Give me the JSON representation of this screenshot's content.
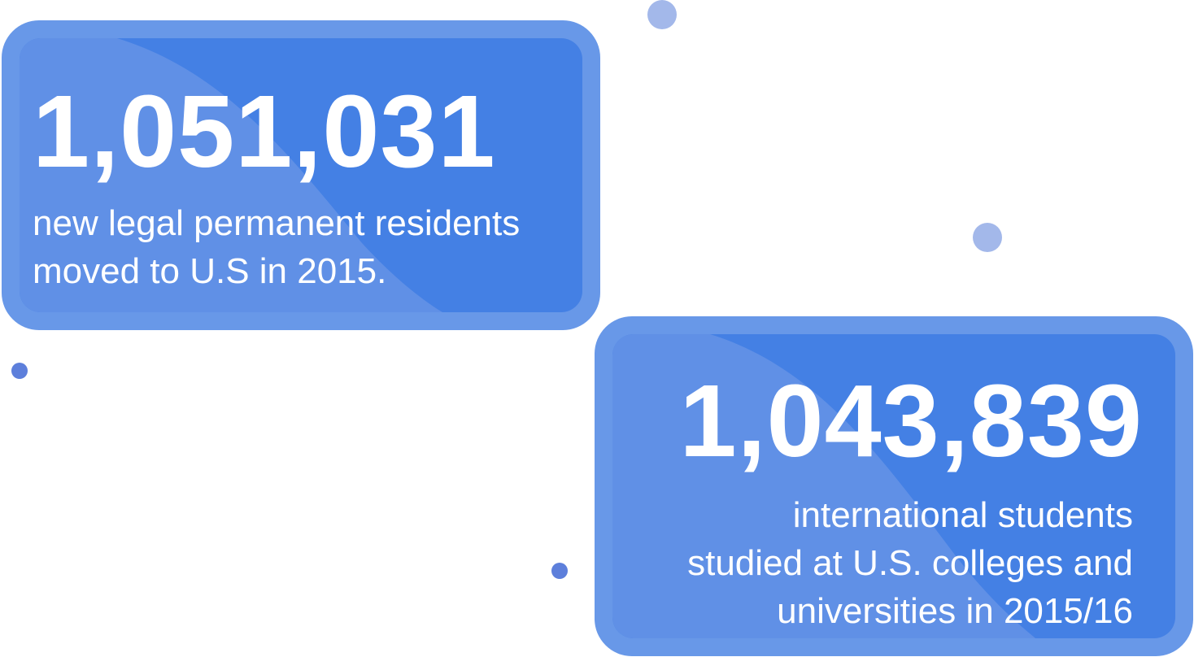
{
  "colors": {
    "card_outer": "#6898e8",
    "card_inner": "#4480e4",
    "card_highlight": "#6090e6",
    "text": "#ffffff",
    "dot_light": "#a3b8ea",
    "dot_dark": "#5d7fdb"
  },
  "stats": [
    {
      "number": "1,051,031",
      "description": [
        "new legal permanent residents",
        "moved to U.S in 2015."
      ]
    },
    {
      "number": "1,043,839",
      "description": [
        "international students",
        "studied at U.S. colleges and",
        "universities in 2015/16"
      ]
    }
  ],
  "decorations": {
    "dot_icons": [
      "dot-icon",
      "dot-icon",
      "dot-icon",
      "dot-icon"
    ]
  }
}
